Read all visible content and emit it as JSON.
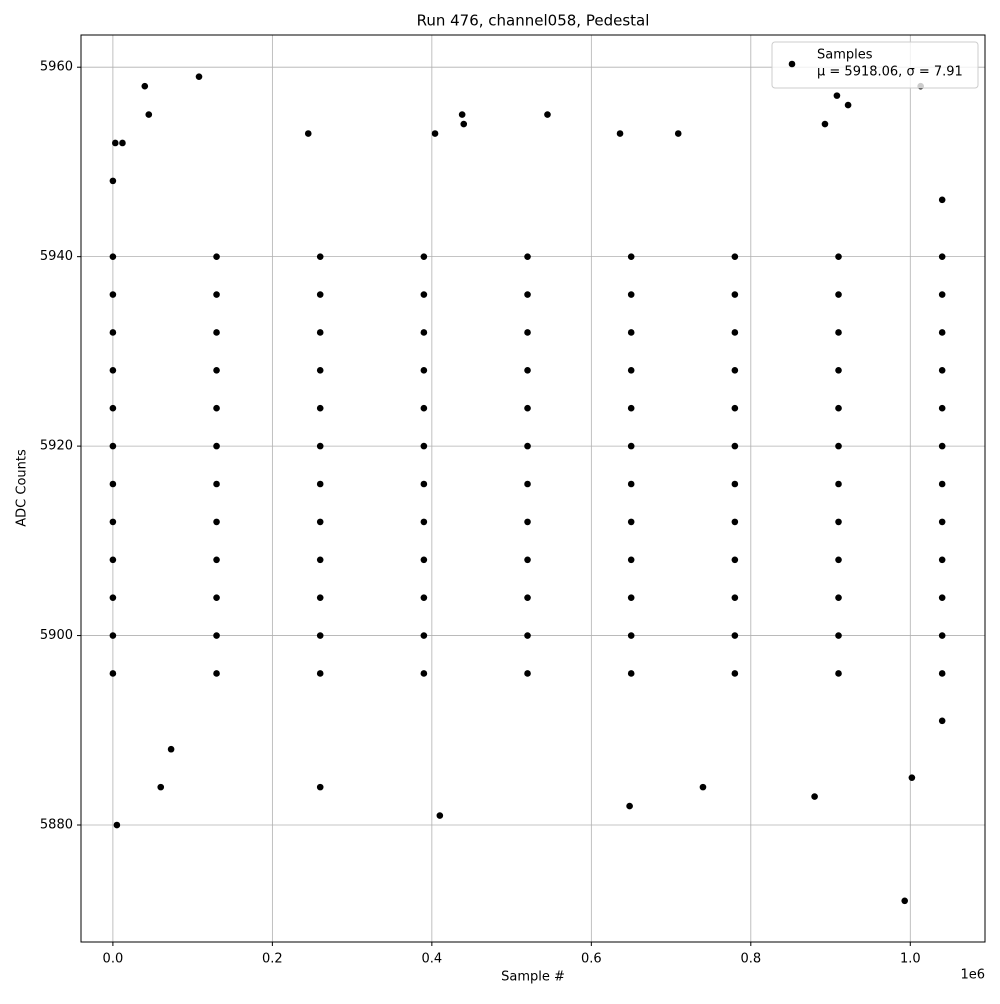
{
  "chart_data": {
    "type": "scatter",
    "title": "Run 476, channel058, Pedestal",
    "x_label": "Sample #",
    "y_label": "ADC Counts",
    "x_offset_label": "1e6",
    "xlim": [
      -40000,
      1093700
    ],
    "ylim": [
      5867.65,
      5963.4
    ],
    "xticks": [
      {
        "value": 0,
        "label": "0.0"
      },
      {
        "value": 200000,
        "label": "0.2"
      },
      {
        "value": 400000,
        "label": "0.4"
      },
      {
        "value": 600000,
        "label": "0.6"
      },
      {
        "value": 800000,
        "label": "0.8"
      },
      {
        "value": 1000000,
        "label": "1.0"
      }
    ],
    "yticks": [
      5880,
      5900,
      5920,
      5940,
      5960
    ],
    "grid": true,
    "legend": "upper right",
    "series": [
      {
        "name": "Samples",
        "stats": "μ = 5918.06, σ = 7.91",
        "color": "#000000",
        "x": [
          0,
          130000,
          260000,
          390000,
          520000,
          650000,
          780000,
          910000,
          1040000,
          0,
          130000,
          260000,
          390000,
          520000,
          650000,
          780000,
          910000,
          1040000,
          0,
          130000,
          260000,
          390000,
          520000,
          650000,
          780000,
          910000,
          1040000,
          0,
          130000,
          260000,
          390000,
          520000,
          650000,
          780000,
          910000,
          1040000,
          0,
          130000,
          260000,
          390000,
          520000,
          650000,
          780000,
          910000,
          1040000,
          0,
          130000,
          260000,
          390000,
          520000,
          650000,
          780000,
          910000,
          1040000,
          0,
          130000,
          260000,
          390000,
          520000,
          650000,
          780000,
          910000,
          1040000,
          0,
          130000,
          260000,
          390000,
          520000,
          650000,
          780000,
          910000,
          1040000,
          0,
          130000,
          260000,
          390000,
          520000,
          650000,
          780000,
          910000,
          1040000,
          0,
          130000,
          260000,
          390000,
          520000,
          650000,
          780000,
          910000,
          1040000,
          0,
          130000,
          260000,
          390000,
          520000,
          650000,
          780000,
          910000,
          1040000,
          0,
          130000,
          260000,
          390000,
          520000,
          650000,
          780000,
          910000,
          1040000,
          5000,
          3000,
          12000,
          40000,
          45000,
          108000,
          60000,
          73000,
          410000,
          648000,
          993000,
          1002000,
          1013000,
          908000,
          922000,
          893000,
          880000,
          438000,
          440000,
          545000,
          404000,
          245000,
          260000,
          740000,
          636000,
          709000,
          0,
          1040000,
          1040000
        ],
        "y": [
          5896,
          5896,
          5896,
          5896,
          5896,
          5896,
          5896,
          5896,
          5896,
          5900,
          5900,
          5900,
          5900,
          5900,
          5900,
          5900,
          5900,
          5900,
          5904,
          5904,
          5904,
          5904,
          5904,
          5904,
          5904,
          5904,
          5904,
          5908,
          5908,
          5908,
          5908,
          5908,
          5908,
          5908,
          5908,
          5908,
          5912,
          5912,
          5912,
          5912,
          5912,
          5912,
          5912,
          5912,
          5912,
          5916,
          5916,
          5916,
          5916,
          5916,
          5916,
          5916,
          5916,
          5916,
          5920,
          5920,
          5920,
          5920,
          5920,
          5920,
          5920,
          5920,
          5920,
          5924,
          5924,
          5924,
          5924,
          5924,
          5924,
          5924,
          5924,
          5924,
          5928,
          5928,
          5928,
          5928,
          5928,
          5928,
          5928,
          5928,
          5928,
          5932,
          5932,
          5932,
          5932,
          5932,
          5932,
          5932,
          5932,
          5932,
          5936,
          5936,
          5936,
          5936,
          5936,
          5936,
          5936,
          5936,
          5936,
          5940,
          5940,
          5940,
          5940,
          5940,
          5940,
          5940,
          5940,
          5940,
          5880,
          5952,
          5952,
          5958,
          5955,
          5959,
          5884,
          5888,
          5881,
          5882,
          5872,
          5885,
          5958,
          5957,
          5956,
          5954,
          5883,
          5955,
          5954,
          5955,
          5953,
          5953,
          5884,
          5884,
          5953,
          5953,
          5948,
          5946,
          5891
        ]
      }
    ]
  }
}
